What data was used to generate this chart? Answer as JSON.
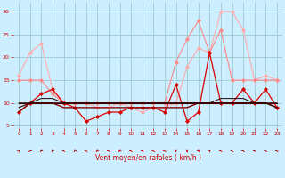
{
  "xlabel": "Vent moyen/en rafales ( km/h )",
  "bg_color": "#cceeff",
  "grid_color": "#99cccc",
  "x_ticks": [
    0,
    1,
    2,
    3,
    4,
    5,
    6,
    7,
    8,
    9,
    10,
    11,
    12,
    13,
    14,
    15,
    16,
    17,
    18,
    19,
    20,
    21,
    22,
    23
  ],
  "y_ticks": [
    5,
    10,
    15,
    20,
    25,
    30
  ],
  "xlim": [
    -0.5,
    23.5
  ],
  "ylim": [
    4.5,
    32
  ],
  "series": [
    {
      "y": [
        16,
        21,
        23,
        13,
        10,
        10,
        10,
        9,
        9,
        10,
        9,
        8,
        9,
        9,
        10,
        18,
        22,
        21,
        30,
        30,
        26,
        15,
        16,
        15
      ],
      "color": "#ffaaaa",
      "lw": 0.8,
      "marker": "D",
      "ms": 2.0
    },
    {
      "y": [
        15,
        15,
        15,
        12,
        10,
        10,
        10,
        10,
        10,
        10,
        10,
        10,
        10,
        10,
        19,
        24,
        28,
        21,
        26,
        15,
        15,
        15,
        15,
        15
      ],
      "color": "#ff8888",
      "lw": 0.8,
      "marker": "D",
      "ms": 2.0
    },
    {
      "y": [
        8,
        10,
        12,
        13,
        10,
        9,
        6,
        7,
        8,
        8,
        9,
        9,
        9,
        8,
        14,
        6,
        8,
        21,
        10,
        10,
        13,
        10,
        13,
        9
      ],
      "color": "#dd0000",
      "lw": 0.9,
      "marker": "D",
      "ms": 2.0
    },
    {
      "y": [
        8,
        10,
        10,
        10,
        9,
        9,
        9,
        9,
        9,
        9,
        9,
        9,
        9,
        9,
        9,
        9,
        10,
        10,
        10,
        10,
        10,
        10,
        10,
        9
      ],
      "color": "#880000",
      "lw": 1.0,
      "marker": null,
      "ms": 0
    },
    {
      "y": [
        10,
        10,
        10,
        10,
        10,
        10,
        10,
        10,
        10,
        10,
        10,
        10,
        10,
        10,
        10,
        10,
        10,
        10,
        10,
        10,
        10,
        10,
        10,
        10
      ],
      "color": "#550000",
      "lw": 0.8,
      "marker": null,
      "ms": 0
    },
    {
      "y": [
        9,
        10,
        10,
        10,
        10,
        10,
        10,
        10,
        10,
        10,
        10,
        10,
        10,
        10,
        10,
        10,
        10,
        10,
        10,
        10,
        10,
        10,
        10,
        9
      ],
      "color": "#330000",
      "lw": 0.8,
      "marker": null,
      "ms": 0
    },
    {
      "y": [
        10,
        10,
        11,
        11,
        10,
        10,
        10,
        10,
        10,
        10,
        10,
        10,
        10,
        10,
        10,
        10,
        10,
        10,
        11,
        11,
        11,
        10,
        10,
        10
      ],
      "color": "#220000",
      "lw": 0.7,
      "marker": null,
      "ms": 0
    }
  ],
  "arrow_color": "#cc0000",
  "xlabel_color": "#cc0000",
  "tick_color": "#cc0000",
  "tick_fontsize": 5,
  "xlabel_fontsize": 5.5,
  "arrow_angles": [
    45,
    0,
    225,
    225,
    180,
    225,
    180,
    225,
    180,
    225,
    180,
    180,
    180,
    180,
    270,
    270,
    315,
    45,
    180,
    180,
    180,
    180,
    180,
    180
  ]
}
